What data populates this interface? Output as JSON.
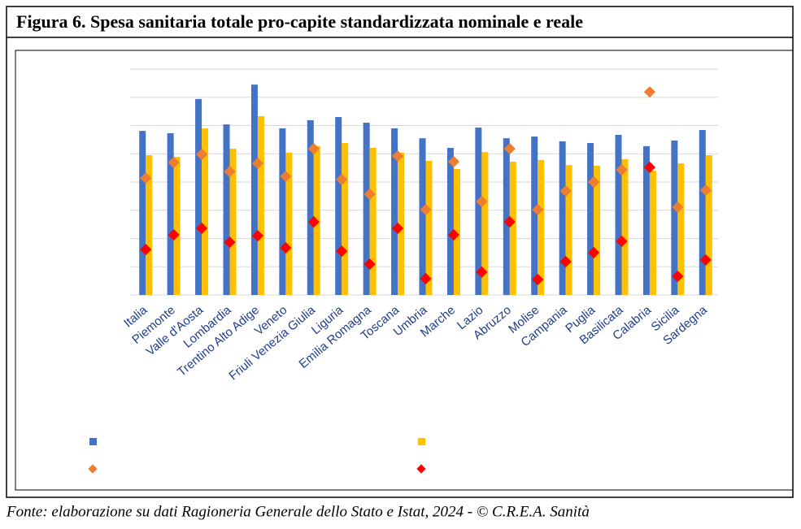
{
  "chart_data": {
    "type": "bar",
    "title": "Figura 6. Spesa sanitaria totale pro-capite standardizzata nominale e reale",
    "source": "Fonte: elaborazione su dati Ragioneria Generale dello Stato e Istat, 2024 - © C.R.E.A. Sanità",
    "categories": [
      "Italia",
      "Piemonte",
      "Valle d'Aosta",
      "Lombardia",
      "Trentino Alto Adige",
      "Veneto",
      "Friuli Venezia Giulia",
      "Liguria",
      "Emilia Romagna",
      "Toscana",
      "Umbria",
      "Marche",
      "Lazio",
      "Abruzzo",
      "Molise",
      "Campania",
      "Puglia",
      "Basilicata",
      "Calabria",
      "Sicilia",
      "Sardegna"
    ],
    "series": [
      {
        "color": "#4472c4",
        "kind": "bar",
        "values": [
          5.81,
          5.73,
          6.94,
          6.04,
          7.45,
          5.9,
          6.19,
          6.3,
          6.1,
          5.9,
          5.55,
          5.21,
          5.93,
          5.55,
          5.61,
          5.44,
          5.38,
          5.67,
          5.27,
          5.47,
          5.84
        ]
      },
      {
        "color": "#ffc000",
        "kind": "bar",
        "values": [
          4.95,
          4.89,
          5.9,
          5.18,
          6.33,
          5.04,
          5.27,
          5.38,
          5.21,
          5.04,
          4.75,
          4.46,
          5.06,
          4.72,
          4.78,
          4.6,
          4.58,
          4.81,
          4.4,
          4.66,
          4.95
        ]
      },
      {
        "color": "#ed7d31",
        "kind": "marker",
        "values": [
          4.14,
          4.69,
          4.98,
          4.37,
          4.66,
          4.2,
          5.18,
          4.09,
          3.57,
          4.92,
          3.02,
          4.72,
          3.31,
          5.18,
          3.02,
          3.68,
          4.0,
          4.43,
          7.19,
          3.11,
          3.71
        ]
      },
      {
        "color": "#ff0000",
        "kind": "marker",
        "values": [
          1.61,
          2.13,
          2.36,
          1.87,
          2.1,
          1.67,
          2.59,
          1.55,
          1.09,
          2.36,
          0.58,
          2.13,
          0.81,
          2.59,
          0.55,
          1.18,
          1.5,
          1.9,
          4.52,
          0.66,
          1.24
        ]
      }
    ],
    "ylim": [
      0,
      8
    ],
    "yticks": [
      0,
      1,
      2,
      3,
      4,
      5,
      6,
      7,
      8
    ],
    "grid": true
  }
}
